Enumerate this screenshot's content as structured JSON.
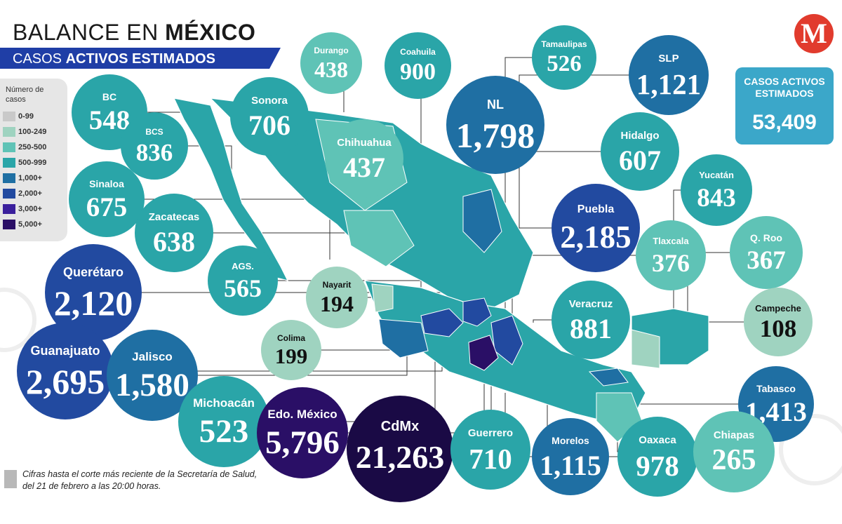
{
  "title": {
    "prefix": "BALANCE EN ",
    "strong": "MÉXICO"
  },
  "subtitle": {
    "prefix": "CASOS ",
    "strong": "ACTIVOS ESTIMADOS"
  },
  "logo_letter": "M",
  "legend": {
    "title": "Número de casos",
    "items": [
      {
        "label": "0-99",
        "color": "#c9c9c9"
      },
      {
        "label": "100-249",
        "color": "#9fd3c0"
      },
      {
        "label": "250-500",
        "color": "#5fc3b6"
      },
      {
        "label": "500-999",
        "color": "#2aa5a8"
      },
      {
        "label": "1,000+",
        "color": "#1f6fa3"
      },
      {
        "label": "2,000+",
        "color": "#224aa0"
      },
      {
        "label": "3,000+",
        "color": "#3a1f9c"
      },
      {
        "label": "5,000+",
        "color": "#2a0f66"
      }
    ]
  },
  "total": {
    "label": "CASOS ACTIVOS ESTIMADOS",
    "value": "53,409"
  },
  "note": "Cifras hasta el corte más reciente de la Secretaría de Salud, del 21 de febrero a las 20:00 horas.",
  "states": [
    {
      "name": "BC",
      "value": "548",
      "color": "#2aa5a8"
    },
    {
      "name": "Sonora",
      "value": "706",
      "color": "#2aa5a8"
    },
    {
      "name": "Durango",
      "value": "438",
      "color": "#5fc3b6"
    },
    {
      "name": "Coahuila",
      "value": "900",
      "color": "#2aa5a8"
    },
    {
      "name": "Tamaulipas",
      "value": "526",
      "color": "#2aa5a8"
    },
    {
      "name": "SLP",
      "value": "1,121",
      "color": "#1f6fa3"
    },
    {
      "name": "BCS",
      "value": "836",
      "color": "#2aa5a8"
    },
    {
      "name": "Chihuahua",
      "value": "437",
      "color": "#5fc3b6"
    },
    {
      "name": "NL",
      "value": "1,798",
      "color": "#1f6fa3"
    },
    {
      "name": "Hidalgo",
      "value": "607",
      "color": "#2aa5a8"
    },
    {
      "name": "Sinaloa",
      "value": "675",
      "color": "#2aa5a8"
    },
    {
      "name": "Zacatecas",
      "value": "638",
      "color": "#2aa5a8"
    },
    {
      "name": "Puebla",
      "value": "2,185",
      "color": "#224aa0"
    },
    {
      "name": "Yucatán",
      "value": "843",
      "color": "#2aa5a8"
    },
    {
      "name": "Querétaro",
      "value": "2,120",
      "color": "#224aa0"
    },
    {
      "name": "AGS.",
      "value": "565",
      "color": "#2aa5a8"
    },
    {
      "name": "Nayarit",
      "value": "194",
      "color": "#9fd3c0"
    },
    {
      "name": "Tlaxcala",
      "value": "376",
      "color": "#5fc3b6"
    },
    {
      "name": "Q. Roo",
      "value": "367",
      "color": "#5fc3b6"
    },
    {
      "name": "Veracruz",
      "value": "881",
      "color": "#2aa5a8"
    },
    {
      "name": "Campeche",
      "value": "108",
      "color": "#9fd3c0"
    },
    {
      "name": "Guanajuato",
      "value": "2,695",
      "color": "#224aa0"
    },
    {
      "name": "Jalisco",
      "value": "1,580",
      "color": "#1f6fa3"
    },
    {
      "name": "Colima",
      "value": "199",
      "color": "#9fd3c0"
    },
    {
      "name": "Tabasco",
      "value": "1,413",
      "color": "#1f6fa3"
    },
    {
      "name": "Michoacán",
      "value": "523",
      "color": "#2aa5a8"
    },
    {
      "name": "Edo. México",
      "value": "5,796",
      "color": "#2a0f66"
    },
    {
      "name": "CdMx",
      "value": "21,263",
      "color": "#1a0a45"
    },
    {
      "name": "Guerrero",
      "value": "710",
      "color": "#2aa5a8"
    },
    {
      "name": "Morelos",
      "value": "1,115",
      "color": "#1f6fa3"
    },
    {
      "name": "Oaxaca",
      "value": "978",
      "color": "#2aa5a8"
    },
    {
      "name": "Chiapas",
      "value": "265",
      "color": "#5fc3b6"
    }
  ]
}
